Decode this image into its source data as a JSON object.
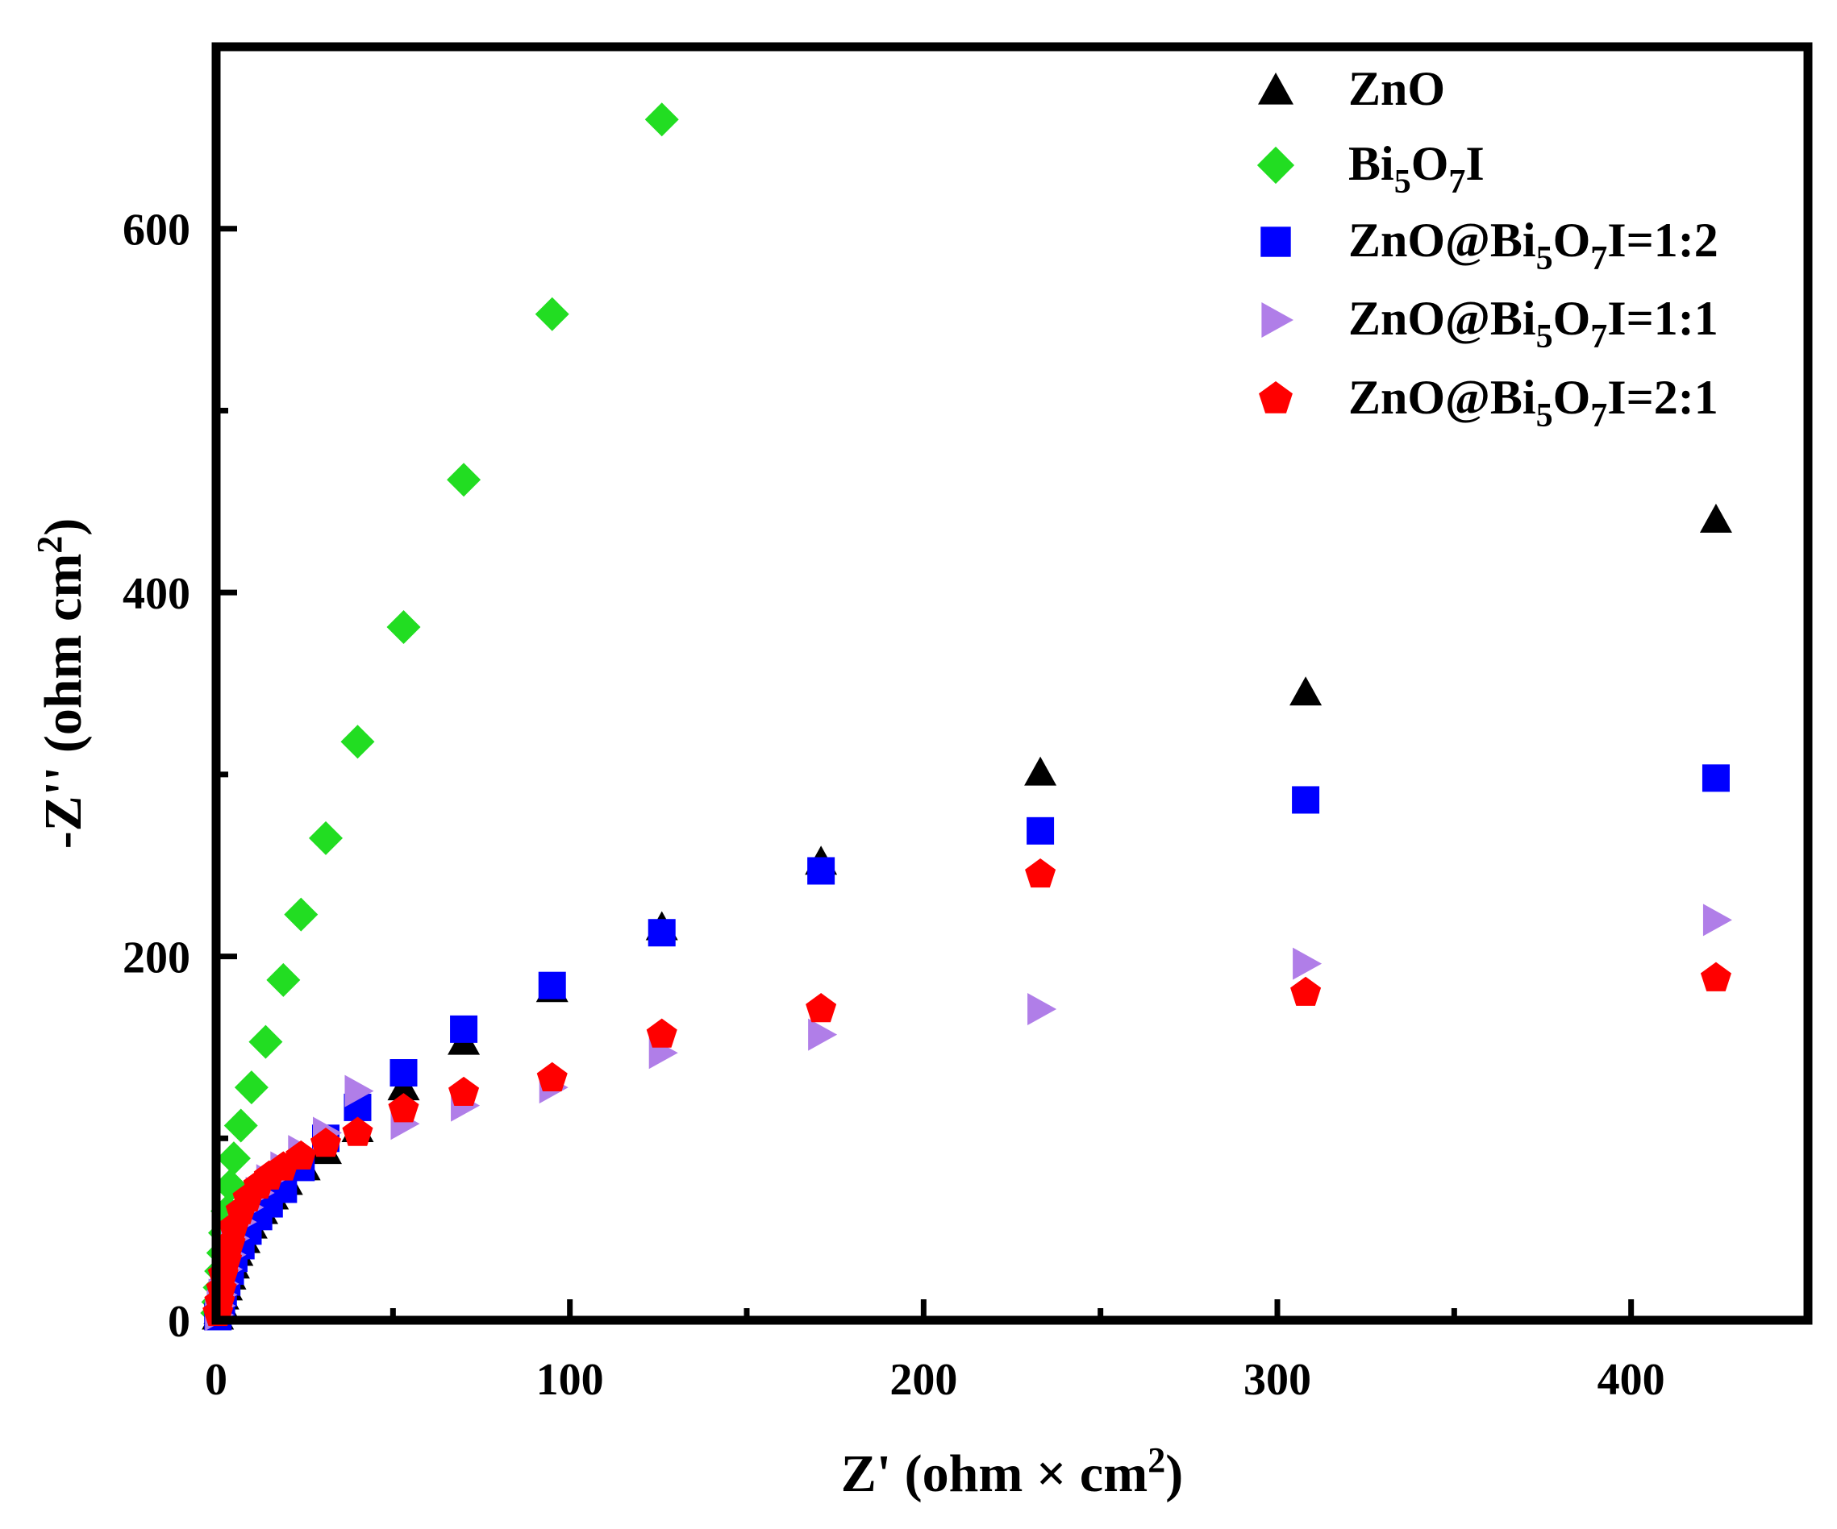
{
  "chart_data": {
    "type": "scatter",
    "xlabel": {
      "main": "Z' (ohm × cm",
      "sup": "2",
      "end": ")"
    },
    "ylabel": {
      "main": "-Z'' (ohm cm",
      "sup": "2",
      "end": ")"
    },
    "xlim": [
      0,
      450
    ],
    "ylim": [
      0,
      700
    ],
    "xticks": [
      0,
      100,
      200,
      300,
      400
    ],
    "xtick_labels": [
      "0",
      "100",
      "200",
      "300",
      "400"
    ],
    "xminor": [
      50,
      150,
      250,
      350
    ],
    "yticks": [
      0,
      200,
      400,
      600
    ],
    "ytick_labels": [
      "0",
      "200",
      "400",
      "600"
    ],
    "yminor": [
      100,
      300,
      500
    ],
    "legend_position": "top-right",
    "series": [
      {
        "name": "ZnO",
        "label_parts": [
          [
            "ZnO",
            false
          ]
        ],
        "marker": "triangle-up",
        "color": "#000000",
        "points": [
          [
            0.5,
            2
          ],
          [
            1,
            5
          ],
          [
            1.5,
            9
          ],
          [
            2,
            13
          ],
          [
            3,
            18
          ],
          [
            4,
            24
          ],
          [
            5,
            30
          ],
          [
            6,
            37
          ],
          [
            8,
            44
          ],
          [
            10,
            52
          ],
          [
            13,
            60
          ],
          [
            16,
            68
          ],
          [
            20,
            76
          ],
          [
            25,
            84
          ],
          [
            31,
            93
          ],
          [
            40,
            105
          ],
          [
            53,
            128
          ],
          [
            70,
            153
          ],
          [
            95,
            182
          ],
          [
            126,
            216
          ],
          [
            171,
            252
          ],
          [
            233,
            301
          ],
          [
            308,
            345
          ],
          [
            424,
            440
          ]
        ]
      },
      {
        "name": "Bi5O7I",
        "label_parts": [
          [
            "Bi",
            false
          ],
          [
            "5",
            true
          ],
          [
            "O",
            false
          ],
          [
            "7",
            true
          ],
          [
            "I",
            false
          ]
        ],
        "marker": "diamond",
        "color": "#22dd22",
        "points": [
          [
            0.3,
            4
          ],
          [
            0.6,
            10
          ],
          [
            1,
            18
          ],
          [
            1.4,
            27
          ],
          [
            2,
            37
          ],
          [
            2.5,
            48
          ],
          [
            3.2,
            60
          ],
          [
            4,
            74
          ],
          [
            5,
            89
          ],
          [
            7,
            107
          ],
          [
            10,
            128
          ],
          [
            14,
            153
          ],
          [
            19,
            187
          ],
          [
            24,
            223
          ],
          [
            31,
            265
          ],
          [
            40,
            318
          ],
          [
            53,
            381
          ],
          [
            70,
            462
          ],
          [
            95,
            553
          ],
          [
            126,
            660
          ]
        ]
      },
      {
        "name": "ZnO@Bi5O7I=1:2",
        "label_parts": [
          [
            "ZnO@Bi",
            false
          ],
          [
            "5",
            true
          ],
          [
            "O",
            false
          ],
          [
            "7",
            true
          ],
          [
            "I=1:2",
            false
          ]
        ],
        "marker": "square",
        "color": "#0000ff",
        "points": [
          [
            0.5,
            2
          ],
          [
            1,
            6
          ],
          [
            1.5,
            10
          ],
          [
            2,
            15
          ],
          [
            3,
            21
          ],
          [
            4,
            27
          ],
          [
            5,
            34
          ],
          [
            7,
            41
          ],
          [
            9,
            49
          ],
          [
            12,
            57
          ],
          [
            15,
            64
          ],
          [
            19,
            72
          ],
          [
            24,
            84
          ],
          [
            31,
            100
          ],
          [
            40,
            117
          ],
          [
            53,
            136
          ],
          [
            70,
            160
          ],
          [
            95,
            184
          ],
          [
            126,
            213
          ],
          [
            171,
            247
          ],
          [
            233,
            269
          ],
          [
            308,
            286
          ],
          [
            424,
            298
          ]
        ]
      },
      {
        "name": "ZnO@Bi5O7I=1:1",
        "label_parts": [
          [
            "ZnO@Bi",
            false
          ],
          [
            "5",
            true
          ],
          [
            "O",
            false
          ],
          [
            "7",
            true
          ],
          [
            "I=1:1",
            false
          ]
        ],
        "marker": "triangle-right",
        "color": "#b07ee8",
        "points": [
          [
            0.5,
            3
          ],
          [
            1,
            8
          ],
          [
            1.5,
            14
          ],
          [
            2,
            20
          ],
          [
            3,
            28
          ],
          [
            4,
            36
          ],
          [
            5,
            45
          ],
          [
            7,
            54
          ],
          [
            9,
            62
          ],
          [
            12,
            70
          ],
          [
            15,
            77
          ],
          [
            19,
            84
          ],
          [
            24,
            93
          ],
          [
            31,
            103
          ],
          [
            40,
            126
          ],
          [
            53,
            108
          ],
          [
            70,
            118
          ],
          [
            95,
            128
          ],
          [
            126,
            147
          ],
          [
            171,
            157
          ],
          [
            233,
            171
          ],
          [
            308,
            196
          ],
          [
            424,
            220
          ]
        ]
      },
      {
        "name": "ZnO@Bi5O7I=2:1",
        "label_parts": [
          [
            "ZnO@Bi",
            false
          ],
          [
            "5",
            true
          ],
          [
            "O",
            false
          ],
          [
            "7",
            true
          ],
          [
            "I=2:1",
            false
          ]
        ],
        "marker": "pentagon",
        "color": "#ff0000",
        "points": [
          [
            0.5,
            4
          ],
          [
            1,
            10
          ],
          [
            1.5,
            17
          ],
          [
            2,
            25
          ],
          [
            3,
            33
          ],
          [
            4,
            42
          ],
          [
            5,
            51
          ],
          [
            7,
            60
          ],
          [
            9,
            67
          ],
          [
            12,
            74
          ],
          [
            15,
            79
          ],
          [
            19,
            84
          ],
          [
            24,
            90
          ],
          [
            31,
            97
          ],
          [
            40,
            103
          ],
          [
            53,
            116
          ],
          [
            70,
            125
          ],
          [
            95,
            133
          ],
          [
            126,
            157
          ],
          [
            171,
            171
          ],
          [
            233,
            245
          ],
          [
            308,
            180
          ],
          [
            424,
            188
          ]
        ]
      }
    ]
  }
}
